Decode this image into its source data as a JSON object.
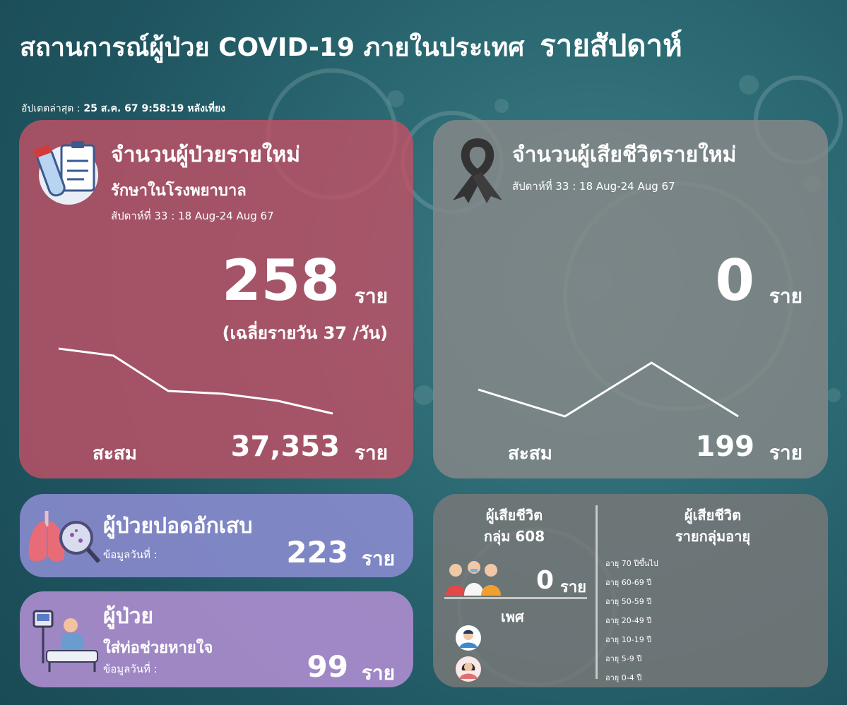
{
  "title": {
    "main": "สถานการณ์ผู้ป่วย COVID-19 ภายในประเทศ",
    "right": "รายสัปดาห์"
  },
  "updated": {
    "label": "อัปเดตล่าสุด :",
    "value": "25 ส.ค. 67 9:58:19 หลังเที่ยง"
  },
  "new_cases": {
    "title": "จำนวนผู้ป่วยรายใหม่",
    "subtitle": "รักษาในโรงพยาบาล",
    "week": "สัปดาห์ที่ 33 : 18 Aug-24 Aug 67",
    "value": "258",
    "unit": "ราย",
    "daily_avg": "(เฉลี่ยรายวัน 37 /วัน)",
    "cumulative_label": "สะสม",
    "cumulative_value": "37,353",
    "cumulative_unit": "ราย"
  },
  "new_deaths": {
    "title": "จำนวนผู้เสียชีวิตรายใหม่",
    "week": "สัปดาห์ที่ 33 : 18 Aug-24 Aug 67",
    "value": "0",
    "unit": "ราย",
    "cumulative_label": "สะสม",
    "cumulative_value": "199",
    "cumulative_unit": "ราย"
  },
  "pneumonia": {
    "title": "ผู้ป่วยปอดอักเสบ",
    "date_label": "ข้อมูลวันที่ :",
    "value": "223",
    "unit": "ราย"
  },
  "ventilator": {
    "title": "ผู้ป่วย",
    "subtitle": "ใส่ท่อช่วยหายใจ",
    "date_label": "ข้อมูลวันที่ :",
    "value": "99",
    "unit": "ราย"
  },
  "deaths_608": {
    "title_line1": "ผู้เสียชีวิต",
    "title_line2": "กลุ่ม 608",
    "value": "0",
    "unit": "ราย",
    "gender_label": "เพศ"
  },
  "deaths_age": {
    "title_line1": "ผู้เสียชีวิต",
    "title_line2": "รายกลุ่มอายุ",
    "groups": [
      "อายุ 70 ปีขึ้นไป",
      "อายุ 60-69 ปี",
      "อายุ 50-59 ปี",
      "อายุ 20-49 ปี",
      "อายุ 10-19 ปี",
      "อายุ 5-9 ปี",
      "อายุ 0-4 ปี"
    ]
  },
  "chart_data": [
    {
      "type": "line",
      "series": [
        {
          "values": [
            9,
            8.5,
            6,
            5.8,
            5.3,
            4.4
          ]
        }
      ]
    },
    {
      "type": "line",
      "series": [
        {
          "values": [
            5,
            3,
            7,
            3
          ]
        }
      ]
    }
  ],
  "colors": {
    "red_card": "#c15066",
    "gray_card": "#878787",
    "purple_card": "#898bce",
    "lavender_card": "#aa8ccd"
  }
}
